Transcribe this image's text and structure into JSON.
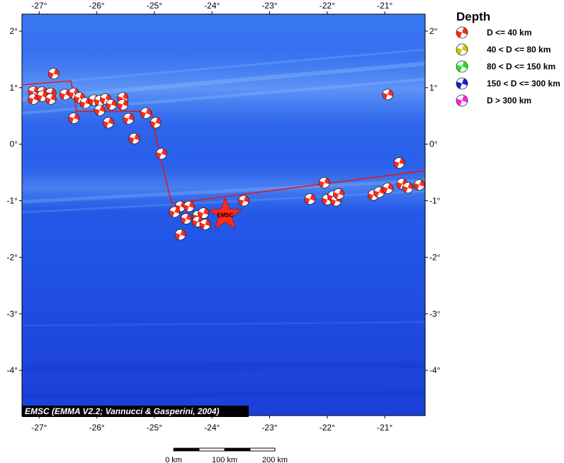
{
  "map": {
    "lon_range": [
      -27.3,
      -20.3
    ],
    "lat_range": [
      -4.8,
      2.3
    ],
    "lon_ticks": [
      {
        "value": -27,
        "label": "-27°"
      },
      {
        "value": -26,
        "label": "-26°"
      },
      {
        "value": -25,
        "label": "-25°"
      },
      {
        "value": -24,
        "label": "-24°"
      },
      {
        "value": -23,
        "label": "-23°"
      },
      {
        "value": -22,
        "label": "-22°"
      },
      {
        "value": -21,
        "label": "-21°"
      }
    ],
    "lat_ticks": [
      {
        "value": 2,
        "label": "2°"
      },
      {
        "value": 1,
        "label": "1°"
      },
      {
        "value": 0,
        "label": "0°"
      },
      {
        "value": -1,
        "label": "-1°"
      },
      {
        "value": -2,
        "label": "-2°"
      },
      {
        "value": -3,
        "label": "-3°"
      },
      {
        "value": -4,
        "label": "-4°"
      }
    ],
    "plate_boundary": [
      [
        -27.3,
        1.05
      ],
      [
        -26.45,
        1.12
      ],
      [
        -26.35,
        0.58
      ],
      [
        -25.05,
        0.58
      ],
      [
        -24.95,
        0.0
      ],
      [
        -24.7,
        -1.05
      ],
      [
        -20.3,
        -0.47
      ]
    ],
    "epicenter": {
      "lon": -23.77,
      "lat": -1.25,
      "label": "EMSC",
      "color": "#ff2a1a"
    },
    "events": [
      {
        "lon": -26.75,
        "lat": 1.25
      },
      {
        "lon": -27.1,
        "lat": 0.93
      },
      {
        "lon": -26.95,
        "lat": 0.92
      },
      {
        "lon": -26.8,
        "lat": 0.9
      },
      {
        "lon": -27.1,
        "lat": 0.8
      },
      {
        "lon": -26.95,
        "lat": 0.85
      },
      {
        "lon": -26.8,
        "lat": 0.8
      },
      {
        "lon": -26.55,
        "lat": 0.88
      },
      {
        "lon": -26.4,
        "lat": 0.9
      },
      {
        "lon": -26.3,
        "lat": 0.82
      },
      {
        "lon": -26.2,
        "lat": 0.73
      },
      {
        "lon": -26.05,
        "lat": 0.78
      },
      {
        "lon": -25.95,
        "lat": 0.77
      },
      {
        "lon": -25.85,
        "lat": 0.8
      },
      {
        "lon": -25.75,
        "lat": 0.7
      },
      {
        "lon": -25.55,
        "lat": 0.82
      },
      {
        "lon": -25.55,
        "lat": 0.7
      },
      {
        "lon": -25.95,
        "lat": 0.6
      },
      {
        "lon": -26.4,
        "lat": 0.46
      },
      {
        "lon": -25.8,
        "lat": 0.38
      },
      {
        "lon": -25.45,
        "lat": 0.45
      },
      {
        "lon": -25.15,
        "lat": 0.55
      },
      {
        "lon": -24.98,
        "lat": 0.38
      },
      {
        "lon": -25.35,
        "lat": 0.1
      },
      {
        "lon": -24.88,
        "lat": -0.17
      },
      {
        "lon": -24.55,
        "lat": -1.1
      },
      {
        "lon": -24.4,
        "lat": -1.1
      },
      {
        "lon": -24.65,
        "lat": -1.2
      },
      {
        "lon": -24.45,
        "lat": -1.32
      },
      {
        "lon": -24.25,
        "lat": -1.27
      },
      {
        "lon": -24.15,
        "lat": -1.22
      },
      {
        "lon": -24.25,
        "lat": -1.37
      },
      {
        "lon": -24.12,
        "lat": -1.42
      },
      {
        "lon": -24.55,
        "lat": -1.6
      },
      {
        "lon": -23.45,
        "lat": -1.0
      },
      {
        "lon": -22.3,
        "lat": -0.97
      },
      {
        "lon": -22.05,
        "lat": -0.68
      },
      {
        "lon": -22.0,
        "lat": -0.98
      },
      {
        "lon": -21.9,
        "lat": -0.92
      },
      {
        "lon": -21.85,
        "lat": -1.0
      },
      {
        "lon": -21.8,
        "lat": -0.88
      },
      {
        "lon": -21.2,
        "lat": -0.9
      },
      {
        "lon": -21.1,
        "lat": -0.85
      },
      {
        "lon": -20.95,
        "lat": -0.78
      },
      {
        "lon": -20.75,
        "lat": -0.33
      },
      {
        "lon": -20.7,
        "lat": -0.7
      },
      {
        "lon": -20.6,
        "lat": -0.77
      },
      {
        "lon": -20.4,
        "lat": -0.72
      },
      {
        "lon": -20.95,
        "lat": 0.88
      }
    ],
    "event_color": "#ff2a1a"
  },
  "legend": {
    "title": "Depth",
    "items": [
      {
        "label": "D <= 40 km",
        "color": "#ff2a1a"
      },
      {
        "label": "40 < D <= 80 km",
        "color": "#c8c800"
      },
      {
        "label": "80 < D <= 150 km",
        "color": "#1ee81e"
      },
      {
        "label": "150 < D <= 300 km",
        "color": "#1818d8"
      },
      {
        "label": "D > 300 km",
        "color": "#ff20e0"
      }
    ]
  },
  "credit": "EMSC (EMMA V2.2; Vannucci & Gasperini, 2004)",
  "scale_bar": {
    "labels": [
      "0 km",
      "100 km",
      "200 km"
    ]
  }
}
